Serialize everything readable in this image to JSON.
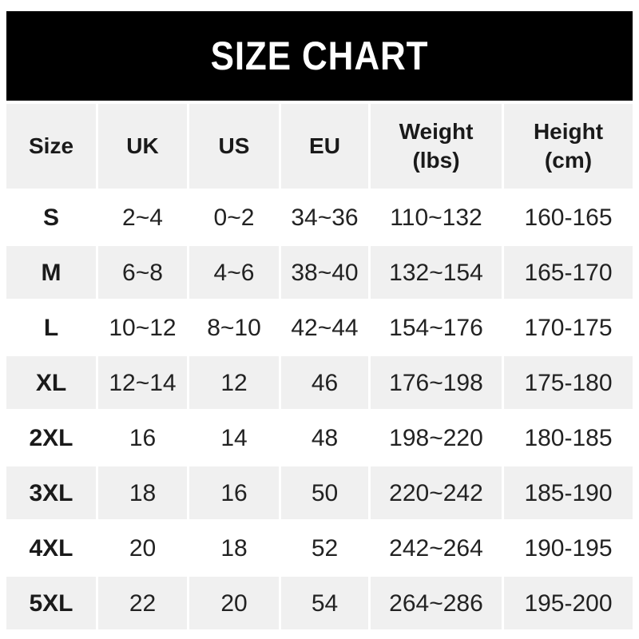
{
  "banner": {
    "bg_color": "#000000",
    "text_color": "#ffffff"
  },
  "colors": {
    "row_bg": "#ffffff",
    "row_alt_bg": "#f0f0f0",
    "header_bg": "#f0f0f0",
    "text": "#222222",
    "bold_text": "#1a1a1a"
  },
  "chart_data": {
    "type": "table",
    "title": "SIZE CHART",
    "columns": [
      {
        "key": "size",
        "label": "Size"
      },
      {
        "key": "uk",
        "label": "UK"
      },
      {
        "key": "us",
        "label": "US"
      },
      {
        "key": "eu",
        "label": "EU"
      },
      {
        "key": "weight",
        "label": "Weight\n(lbs)"
      },
      {
        "key": "height",
        "label": "Height\n(cm)"
      }
    ],
    "rows": [
      {
        "size": "S",
        "uk": "2~4",
        "us": "0~2",
        "eu": "34~36",
        "weight": "110~132",
        "height": "160-165"
      },
      {
        "size": "M",
        "uk": "6~8",
        "us": "4~6",
        "eu": "38~40",
        "weight": "132~154",
        "height": "165-170"
      },
      {
        "size": "L",
        "uk": "10~12",
        "us": "8~10",
        "eu": "42~44",
        "weight": "154~176",
        "height": "170-175"
      },
      {
        "size": "XL",
        "uk": "12~14",
        "us": "12",
        "eu": "46",
        "weight": "176~198",
        "height": "175-180"
      },
      {
        "size": "2XL",
        "uk": "16",
        "us": "14",
        "eu": "48",
        "weight": "198~220",
        "height": "180-185"
      },
      {
        "size": "3XL",
        "uk": "18",
        "us": "16",
        "eu": "50",
        "weight": "220~242",
        "height": "185-190"
      },
      {
        "size": "4XL",
        "uk": "20",
        "us": "18",
        "eu": "52",
        "weight": "242~264",
        "height": "190-195"
      },
      {
        "size": "5XL",
        "uk": "22",
        "us": "20",
        "eu": "54",
        "weight": "264~286",
        "height": "195-200"
      }
    ]
  }
}
